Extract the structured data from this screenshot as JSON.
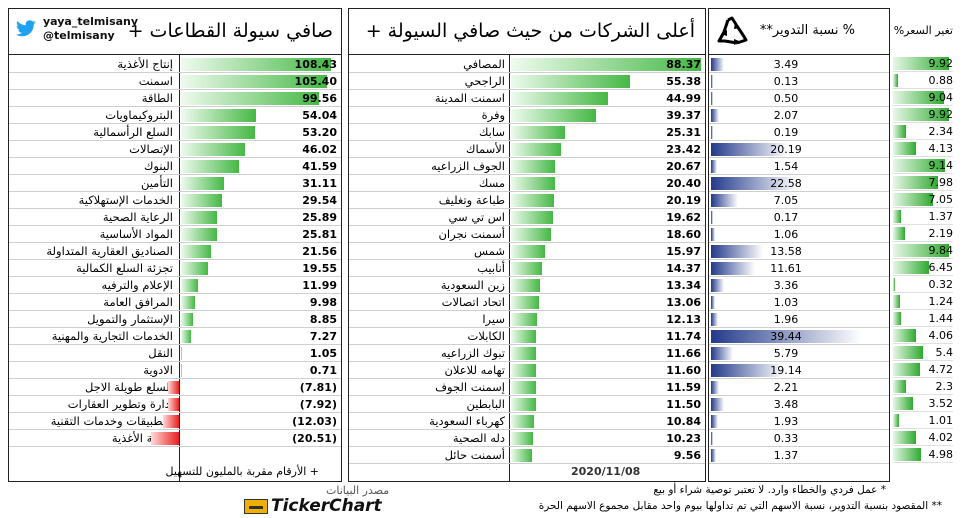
{
  "twitter": {
    "handle1": "yaya_telmisany",
    "handle2": "@telmisany"
  },
  "sectors": {
    "title": "صافي سيولة القطاعات +",
    "footnote": "+ الأرقام مقربة بالمليون للتسهيل",
    "rows": [
      {
        "name": "إنتاج الأغذية",
        "value": 108.43,
        "text": "108.43"
      },
      {
        "name": "اسمنت",
        "value": 105.4,
        "text": "105.40"
      },
      {
        "name": "الطاقة",
        "value": 99.56,
        "text": "99.56"
      },
      {
        "name": "البتروكيماويات",
        "value": 54.04,
        "text": "54.04"
      },
      {
        "name": "السلع الرأسمالية",
        "value": 53.2,
        "text": "53.20"
      },
      {
        "name": "الإتصالات",
        "value": 46.02,
        "text": "46.02"
      },
      {
        "name": "البنوك",
        "value": 41.59,
        "text": "41.59"
      },
      {
        "name": "التأمين",
        "value": 31.11,
        "text": "31.11"
      },
      {
        "name": "الخدمات الإستهلاكية",
        "value": 29.54,
        "text": "29.54"
      },
      {
        "name": "الرعاية الصحية",
        "value": 25.89,
        "text": "25.89"
      },
      {
        "name": "المواد الأساسية",
        "value": 25.81,
        "text": "25.81"
      },
      {
        "name": "الصناديق العقارية المتداولة",
        "value": 21.56,
        "text": "21.56"
      },
      {
        "name": "تجزئة السلع الكمالية",
        "value": 19.55,
        "text": "19.55"
      },
      {
        "name": "الإعلام والترفيه",
        "value": 11.99,
        "text": "11.99"
      },
      {
        "name": "المرافق العامة",
        "value": 9.98,
        "text": "9.98"
      },
      {
        "name": "الإستثمار والتمويل",
        "value": 8.85,
        "text": "8.85"
      },
      {
        "name": "الخدمات التجارية والمهنية",
        "value": 7.27,
        "text": "7.27"
      },
      {
        "name": "النقل",
        "value": 1.05,
        "text": "1.05"
      },
      {
        "name": "الادوية",
        "value": 0.71,
        "text": "0.71"
      },
      {
        "name": "السلع طويلة الاجل",
        "value": -7.81,
        "text": "(7.81)"
      },
      {
        "name": "إدارة وتطوير العقارات",
        "value": -7.92,
        "text": "(7.92)"
      },
      {
        "name": "التطبيقات وخدمات التقنية",
        "value": -12.03,
        "text": "(12.03)"
      },
      {
        "name": "تجزئة الأغذية",
        "value": -20.51,
        "text": "(20.51)"
      }
    ]
  },
  "companies": {
    "title": "أعلى الشركات من حيث صافي السيولة +",
    "date": "2020/11/08",
    "turnover_header": "% نسبة التدوير**",
    "price_header": "تغير السعر%",
    "rows": [
      {
        "name": "المصافي",
        "flow": 88.37,
        "flow_text": "88.37",
        "turnover": 3.49,
        "turnover_text": "3.49",
        "price": 9.92,
        "price_text": "9.92"
      },
      {
        "name": "الراجحي",
        "flow": 55.38,
        "flow_text": "55.38",
        "turnover": 0.13,
        "turnover_text": "0.13",
        "price": 0.88,
        "price_text": "0.88"
      },
      {
        "name": "اسمنت المدينة",
        "flow": 44.99,
        "flow_text": "44.99",
        "turnover": 0.5,
        "turnover_text": "0.50",
        "price": 9.04,
        "price_text": "9.04"
      },
      {
        "name": "وفرة",
        "flow": 39.37,
        "flow_text": "39.37",
        "turnover": 2.07,
        "turnover_text": "2.07",
        "price": 9.92,
        "price_text": "9.92"
      },
      {
        "name": "سابك",
        "flow": 25.31,
        "flow_text": "25.31",
        "turnover": 0.19,
        "turnover_text": "0.19",
        "price": 2.34,
        "price_text": "2.34"
      },
      {
        "name": "الأسماك",
        "flow": 23.42,
        "flow_text": "23.42",
        "turnover": 20.19,
        "turnover_text": "20.19",
        "price": 4.13,
        "price_text": "4.13"
      },
      {
        "name": "الجوف الزراعيه",
        "flow": 20.67,
        "flow_text": "20.67",
        "turnover": 1.54,
        "turnover_text": "1.54",
        "price": 9.14,
        "price_text": "9.14"
      },
      {
        "name": "مسك",
        "flow": 20.4,
        "flow_text": "20.40",
        "turnover": 22.58,
        "turnover_text": "22.58",
        "price": 7.98,
        "price_text": "7.98"
      },
      {
        "name": "طباعة وتغليف",
        "flow": 20.19,
        "flow_text": "20.19",
        "turnover": 7.05,
        "turnover_text": "7.05",
        "price": 7.05,
        "price_text": "7.05"
      },
      {
        "name": "اس تي سي",
        "flow": 19.62,
        "flow_text": "19.62",
        "turnover": 0.17,
        "turnover_text": "0.17",
        "price": 1.37,
        "price_text": "1.37"
      },
      {
        "name": "أسمنت نجران",
        "flow": 18.6,
        "flow_text": "18.60",
        "turnover": 1.06,
        "turnover_text": "1.06",
        "price": 2.19,
        "price_text": "2.19"
      },
      {
        "name": "شمس",
        "flow": 15.97,
        "flow_text": "15.97",
        "turnover": 13.58,
        "turnover_text": "13.58",
        "price": 9.84,
        "price_text": "9.84"
      },
      {
        "name": "أنابيب",
        "flow": 14.37,
        "flow_text": "14.37",
        "turnover": 11.61,
        "turnover_text": "11.61",
        "price": 6.45,
        "price_text": "6.45"
      },
      {
        "name": "زين السعودية",
        "flow": 13.34,
        "flow_text": "13.34",
        "turnover": 3.36,
        "turnover_text": "3.36",
        "price": 0.32,
        "price_text": "0.32"
      },
      {
        "name": "اتحاد اتصالات",
        "flow": 13.06,
        "flow_text": "13.06",
        "turnover": 1.03,
        "turnover_text": "1.03",
        "price": 1.24,
        "price_text": "1.24"
      },
      {
        "name": "سيرا",
        "flow": 12.13,
        "flow_text": "12.13",
        "turnover": 1.96,
        "turnover_text": "1.96",
        "price": 1.44,
        "price_text": "1.44"
      },
      {
        "name": "الكابلات",
        "flow": 11.74,
        "flow_text": "11.74",
        "turnover": 39.44,
        "turnover_text": "39.44",
        "price": 4.06,
        "price_text": "4.06"
      },
      {
        "name": "تبوك الزراعيه",
        "flow": 11.66,
        "flow_text": "11.66",
        "turnover": 5.79,
        "turnover_text": "5.79",
        "price": 5.4,
        "price_text": "5.4"
      },
      {
        "name": "تهامه للاعلان",
        "flow": 11.6,
        "flow_text": "11.60",
        "turnover": 19.14,
        "turnover_text": "19.14",
        "price": 4.72,
        "price_text": "4.72"
      },
      {
        "name": "إسمنت الجوف",
        "flow": 11.59,
        "flow_text": "11.59",
        "turnover": 2.21,
        "turnover_text": "2.21",
        "price": 2.3,
        "price_text": "2.3"
      },
      {
        "name": "البابطين",
        "flow": 11.5,
        "flow_text": "11.50",
        "turnover": 3.48,
        "turnover_text": "3.48",
        "price": 3.52,
        "price_text": "3.52"
      },
      {
        "name": "كهرباء السعودية",
        "flow": 10.84,
        "flow_text": "10.84",
        "turnover": 1.93,
        "turnover_text": "1.93",
        "price": 1.01,
        "price_text": "1.01"
      },
      {
        "name": "دله الصحية",
        "flow": 10.23,
        "flow_text": "10.23",
        "turnover": 0.33,
        "turnover_text": "0.33",
        "price": 4.02,
        "price_text": "4.02"
      },
      {
        "name": "أسمنت حائل",
        "flow": 9.56,
        "flow_text": "9.56",
        "turnover": 1.37,
        "turnover_text": "1.37",
        "price": 4.98,
        "price_text": "4.98"
      }
    ]
  },
  "source": {
    "label": "مصدر البيانات",
    "brand": "TickerChart"
  },
  "notes": {
    "line1": "* عمل فردي والخطاء وارد. لا تعتبر توصية شراء أو بيع",
    "line2": "** المقصود بنسبة التدوير، نسبة الاسهم التي تم تداولها بيوم واحد مقابل مجموع الاسهم الحرة"
  },
  "colors": {
    "positive": "#45b845",
    "negative": "#e82020",
    "turnover": "#233a8a",
    "price": "#2faa2f"
  },
  "icons": {
    "twitter": "twitter-bird-icon",
    "recycle": "recycle-icon",
    "brand": "tickerchart-logo-icon"
  },
  "chart_data": [
    {
      "type": "bar",
      "title": "صافي سيولة القطاعات +",
      "categories": [
        "إنتاج الأغذية",
        "اسمنت",
        "الطاقة",
        "البتروكيماويات",
        "السلع الرأسمالية",
        "الإتصالات",
        "البنوك",
        "التأمين",
        "الخدمات الإستهلاكية",
        "الرعاية الصحية",
        "المواد الأساسية",
        "الصناديق العقارية المتداولة",
        "تجزئة السلع الكمالية",
        "الإعلام والترفيه",
        "المرافق العامة",
        "الإستثمار والتمويل",
        "الخدمات التجارية والمهنية",
        "النقل",
        "الادوية",
        "السلع طويلة الاجل",
        "إدارة وتطوير العقارات",
        "التطبيقات وخدمات التقنية",
        "تجزئة الأغذية"
      ],
      "values": [
        108.43,
        105.4,
        99.56,
        54.04,
        53.2,
        46.02,
        41.59,
        31.11,
        29.54,
        25.89,
        25.81,
        21.56,
        19.55,
        11.99,
        9.98,
        8.85,
        7.27,
        1.05,
        0.71,
        -7.81,
        -7.92,
        -12.03,
        -20.51
      ]
    },
    {
      "type": "table",
      "title": "أعلى الشركات من حيث صافي السيولة +",
      "categories": [
        "المصافي",
        "الراجحي",
        "اسمنت المدينة",
        "وفرة",
        "سابك",
        "الأسماك",
        "الجوف الزراعيه",
        "مسك",
        "طباعة وتغليف",
        "اس تي سي",
        "أسمنت نجران",
        "شمس",
        "أنابيب",
        "زين السعودية",
        "اتحاد اتصالات",
        "سيرا",
        "الكابلات",
        "تبوك الزراعيه",
        "تهامه للاعلان",
        "إسمنت الجوف",
        "البابطين",
        "كهرباء السعودية",
        "دله الصحية",
        "أسمنت حائل"
      ],
      "series": [
        {
          "name": "",
          "values": [
            88.37,
            55.38,
            44.99,
            39.37,
            25.31,
            23.42,
            20.67,
            20.4,
            20.19,
            19.62,
            18.6,
            15.97,
            14.37,
            13.34,
            13.06,
            12.13,
            11.74,
            11.66,
            11.6,
            11.59,
            11.5,
            10.84,
            10.23,
            9.56
          ]
        },
        {
          "name": "% نسبة التدوير**",
          "values": [
            3.49,
            0.13,
            0.5,
            2.07,
            0.19,
            20.19,
            1.54,
            22.58,
            7.05,
            0.17,
            1.06,
            13.58,
            11.61,
            3.36,
            1.03,
            1.96,
            39.44,
            5.79,
            19.14,
            2.21,
            3.48,
            1.93,
            0.33,
            1.37
          ]
        },
        {
          "name": "تغير السعر%",
          "values": [
            9.92,
            0.88,
            9.04,
            9.92,
            2.34,
            4.13,
            9.14,
            7.98,
            7.05,
            1.37,
            2.19,
            9.84,
            6.45,
            0.32,
            1.24,
            1.44,
            4.06,
            5.4,
            4.72,
            2.3,
            3.52,
            1.01,
            4.02,
            4.98
          ]
        }
      ]
    }
  ]
}
